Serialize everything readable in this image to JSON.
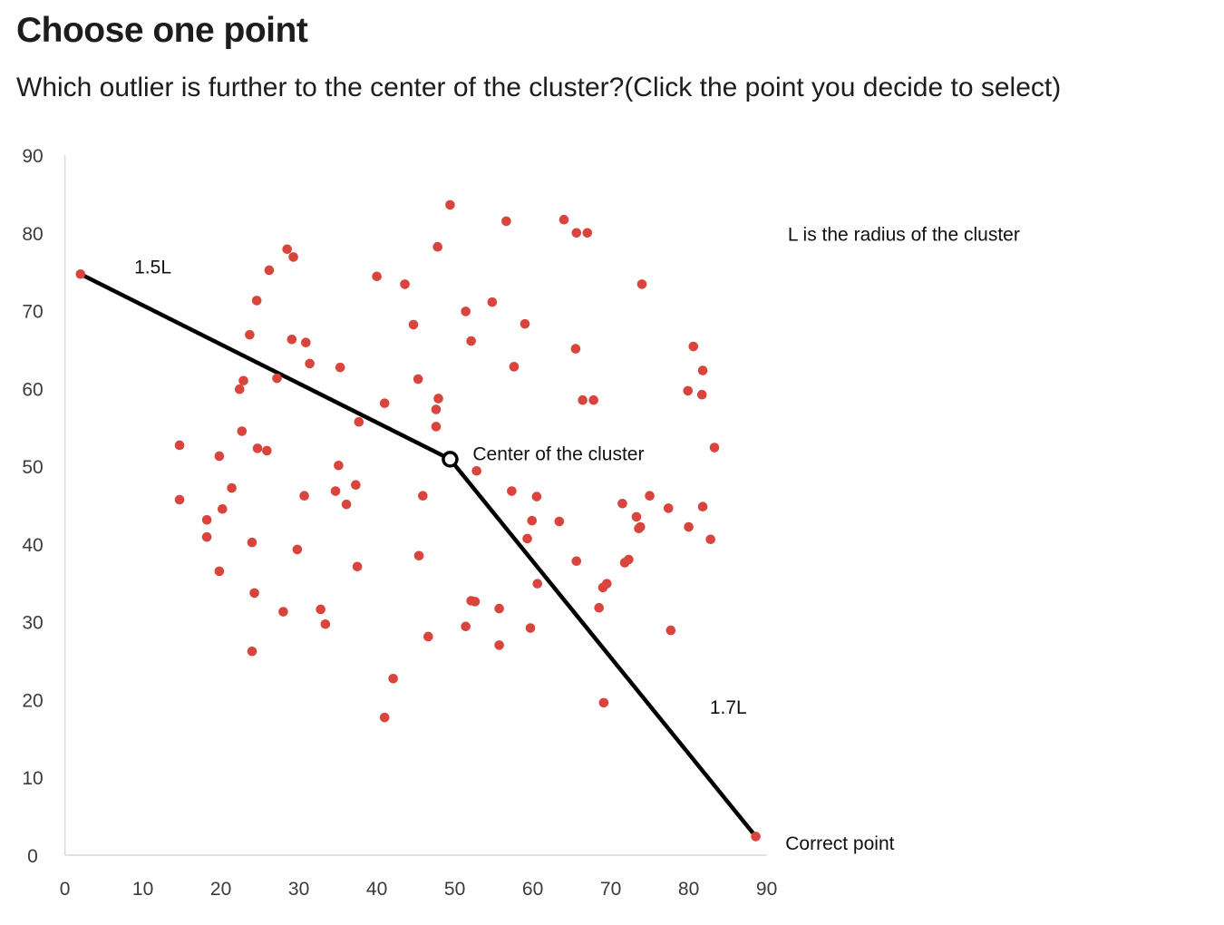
{
  "header": {
    "title": "Choose one point",
    "question": "Which outlier is further to the center of the cluster?(Click the point you decide to select)"
  },
  "colors": {
    "point": "#d9443d",
    "line": "#000000",
    "axis": "#d9d9d9",
    "text": "#1d1d1f"
  },
  "chart_data": {
    "type": "scatter",
    "xlim": [
      0,
      90
    ],
    "ylim": [
      0,
      90
    ],
    "x_ticks": [
      0,
      10,
      20,
      30,
      40,
      50,
      60,
      70,
      80,
      90
    ],
    "y_ticks": [
      0,
      10,
      20,
      30,
      40,
      50,
      60,
      70,
      80,
      90
    ],
    "grid": false,
    "points": [
      [
        2,
        74.7
      ],
      [
        88.6,
        2.4
      ],
      [
        49.4,
        83.6
      ],
      [
        56.6,
        81.5
      ],
      [
        64,
        81.7
      ],
      [
        65.6,
        80
      ],
      [
        67,
        80
      ],
      [
        28.5,
        77.9
      ],
      [
        29.3,
        76.9
      ],
      [
        47.8,
        78.2
      ],
      [
        26.2,
        75.2
      ],
      [
        40,
        74.4
      ],
      [
        43.6,
        73.4
      ],
      [
        74,
        73.4
      ],
      [
        24.6,
        71.3
      ],
      [
        51.4,
        69.9
      ],
      [
        54.8,
        71.1
      ],
      [
        44.7,
        68.2
      ],
      [
        59,
        68.3
      ],
      [
        23.7,
        66.9
      ],
      [
        29.1,
        66.3
      ],
      [
        30.9,
        65.9
      ],
      [
        52.1,
        66.1
      ],
      [
        65.5,
        65.1
      ],
      [
        80.6,
        65.4
      ],
      [
        31.4,
        63.2
      ],
      [
        35.3,
        62.7
      ],
      [
        57.6,
        62.8
      ],
      [
        81.8,
        62.3
      ],
      [
        27.2,
        61.3
      ],
      [
        45.3,
        61.2
      ],
      [
        22.9,
        61
      ],
      [
        22.4,
        59.9
      ],
      [
        79.9,
        59.7
      ],
      [
        81.7,
        59.2
      ],
      [
        47.9,
        58.7
      ],
      [
        66.4,
        58.5
      ],
      [
        67.8,
        58.5
      ],
      [
        41,
        58.1
      ],
      [
        47.6,
        57.3
      ],
      [
        37.7,
        55.7
      ],
      [
        47.6,
        55.1
      ],
      [
        22.7,
        54.5
      ],
      [
        14.7,
        52.7
      ],
      [
        24.7,
        52.3
      ],
      [
        25.9,
        52
      ],
      [
        83.3,
        52.4
      ],
      [
        19.8,
        51.3
      ],
      [
        35.1,
        50.1
      ],
      [
        52.8,
        49.4
      ],
      [
        21.4,
        47.2
      ],
      [
        34.7,
        46.8
      ],
      [
        37.3,
        47.6
      ],
      [
        57.3,
        46.8
      ],
      [
        60.5,
        46.1
      ],
      [
        30.7,
        46.2
      ],
      [
        45.9,
        46.2
      ],
      [
        14.7,
        45.7
      ],
      [
        36.1,
        45.1
      ],
      [
        71.5,
        45.2
      ],
      [
        75,
        46.2
      ],
      [
        77.4,
        44.6
      ],
      [
        81.8,
        44.8
      ],
      [
        20.2,
        44.5
      ],
      [
        73.3,
        43.5
      ],
      [
        18.2,
        43.1
      ],
      [
        59.9,
        43
      ],
      [
        63.4,
        42.9
      ],
      [
        73.8,
        42.2
      ],
      [
        73.6,
        42
      ],
      [
        80,
        42.2
      ],
      [
        18.2,
        40.9
      ],
      [
        59.3,
        40.7
      ],
      [
        24,
        40.2
      ],
      [
        82.8,
        40.6
      ],
      [
        29.8,
        39.3
      ],
      [
        45.4,
        38.5
      ],
      [
        65.6,
        37.8
      ],
      [
        72.3,
        38
      ],
      [
        71.8,
        37.6
      ],
      [
        37.5,
        37.1
      ],
      [
        19.8,
        36.5
      ],
      [
        60.6,
        34.9
      ],
      [
        69.5,
        34.9
      ],
      [
        69,
        34.4
      ],
      [
        24.3,
        33.7
      ],
      [
        52.1,
        32.7
      ],
      [
        52.6,
        32.6
      ],
      [
        32.8,
        31.6
      ],
      [
        55.7,
        31.7
      ],
      [
        68.5,
        31.8
      ],
      [
        28,
        31.3
      ],
      [
        33.4,
        29.7
      ],
      [
        51.4,
        29.4
      ],
      [
        59.7,
        29.2
      ],
      [
        77.7,
        28.9
      ],
      [
        46.6,
        28.1
      ],
      [
        55.7,
        27
      ],
      [
        24,
        26.2
      ],
      [
        42.1,
        22.7
      ],
      [
        69.1,
        19.6
      ],
      [
        41,
        17.7
      ]
    ],
    "center": [
      49.4,
      50.9
    ],
    "center_label": "Center of the cluster",
    "lines": [
      {
        "from": [
          2,
          74.7
        ],
        "to": [
          49.4,
          50.9
        ],
        "label": "1.5L",
        "label_at": [
          8.9,
          75.6
        ]
      },
      {
        "from": [
          49.4,
          50.9
        ],
        "to": [
          88.6,
          2.4
        ],
        "label": "1.7L",
        "label_at": [
          82.7,
          19
        ]
      }
    ],
    "annotations": [
      {
        "text": "L is the radius of the cluster",
        "at": [
          92.7,
          79.8
        ]
      },
      {
        "text": "Center of the cluster",
        "at": [
          52.3,
          51.6
        ]
      },
      {
        "text": "Correct point",
        "at": [
          92.4,
          1.5
        ]
      }
    ]
  }
}
